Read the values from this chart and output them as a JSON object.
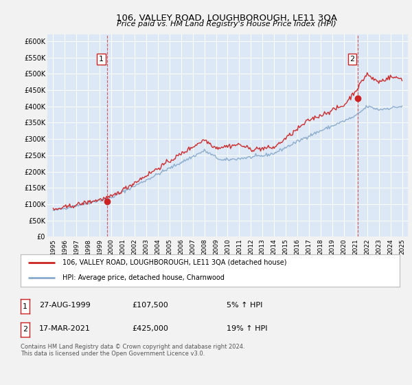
{
  "title": "106, VALLEY ROAD, LOUGHBOROUGH, LE11 3QA",
  "subtitle": "Price paid vs. HM Land Registry's House Price Index (HPI)",
  "bg_color": "#f0f0f0",
  "plot_bg_color": "#dce8f5",
  "grid_color": "#ffffff",
  "red_color": "#cc2222",
  "blue_color": "#88aacc",
  "marker1_year": 1999.65,
  "marker1_value": 107500,
  "marker2_year": 2021.21,
  "marker2_value": 425000,
  "legend1": "106, VALLEY ROAD, LOUGHBOROUGH, LE11 3QA (detached house)",
  "legend2": "HPI: Average price, detached house, Charnwood",
  "table_rows": [
    {
      "num": "1",
      "date": "27-AUG-1999",
      "price": "£107,500",
      "hpi": "5% ↑ HPI"
    },
    {
      "num": "2",
      "date": "17-MAR-2021",
      "price": "£425,000",
      "hpi": "19% ↑ HPI"
    }
  ],
  "footnote1": "Contains HM Land Registry data © Crown copyright and database right 2024.",
  "footnote2": "This data is licensed under the Open Government Licence v3.0.",
  "ylim": [
    0,
    620000
  ],
  "xlim": [
    1994.5,
    2025.5
  ],
  "yticks": [
    0,
    50000,
    100000,
    150000,
    200000,
    250000,
    300000,
    350000,
    400000,
    450000,
    500000,
    550000,
    600000
  ],
  "ytick_labels": [
    "£0",
    "£50K",
    "£100K",
    "£150K",
    "£200K",
    "£250K",
    "£300K",
    "£350K",
    "£400K",
    "£450K",
    "£500K",
    "£550K",
    "£600K"
  ],
  "xticks": [
    1995,
    1996,
    1997,
    1998,
    1999,
    2000,
    2001,
    2002,
    2003,
    2004,
    2005,
    2006,
    2007,
    2008,
    2009,
    2010,
    2011,
    2012,
    2013,
    2014,
    2015,
    2016,
    2017,
    2018,
    2019,
    2020,
    2021,
    2022,
    2023,
    2024,
    2025
  ]
}
